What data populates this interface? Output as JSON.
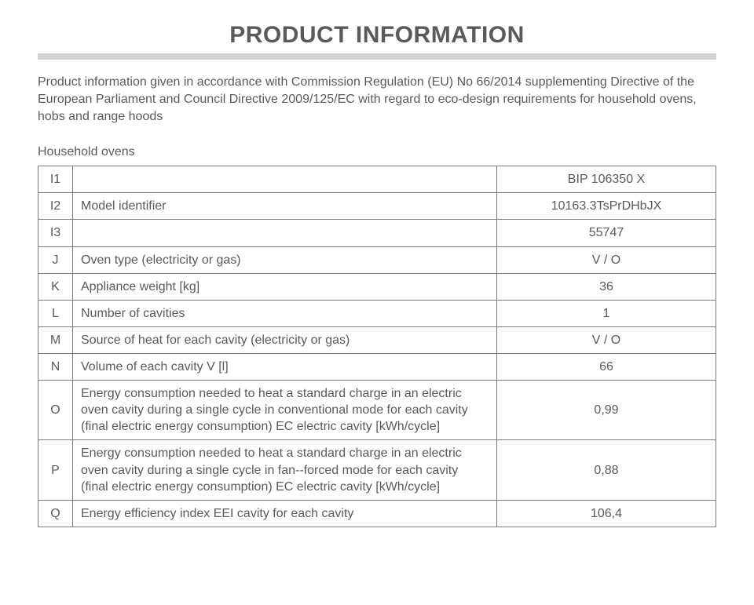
{
  "title": "PRODUCT INFORMATION",
  "intro": "Product information given in accordance with Commission Regulation (EU) No 66/2014 supplementing Directive of the European Parliament and Council Directive 2009/125/EC with regard to eco-design requirements for household ovens, hobs and range hoods",
  "subheading": "Household ovens",
  "table": {
    "columns": {
      "c1_width": 44,
      "c2_width": 540
    },
    "rows": [
      {
        "key": "I1",
        "desc": "",
        "val": "BIP 106350 X"
      },
      {
        "key": "I2",
        "desc": "Model identifier",
        "val": "10163.3TsPrDHbJX"
      },
      {
        "key": "I3",
        "desc": "",
        "val": "55747"
      },
      {
        "key": "J",
        "desc": "Oven type (electricity or gas)",
        "val": "V / O"
      },
      {
        "key": "K",
        "desc": "Appliance weight [kg]",
        "val": "36"
      },
      {
        "key": "L",
        "desc": "Number of cavities",
        "val": "1"
      },
      {
        "key": "M",
        "desc": "Source of heat for each cavity (electricity or gas)",
        "val": "V / O"
      },
      {
        "key": "N",
        "desc": "Volume of each cavity V [l]",
        "val": "66"
      },
      {
        "key": "O",
        "desc": "Energy consumption needed to heat a standard charge in an electric oven cavity during a single cycle in conventional mode for each cavity (final electric energy consumption) EC electric cavity [kWh/cycle]",
        "val": "0,99"
      },
      {
        "key": "P",
        "desc": "Energy consumption needed to heat a standard charge in an electric oven cavity during a single cycle in fan-​-forced mode for each cavity (final electric energy consumption) EC electric cavity [kWh/cycle]",
        "val": "0,88"
      },
      {
        "key": "Q",
        "desc": "Energy efficiency index EEI cavity for each cavity",
        "val": "106,4"
      }
    ]
  },
  "colors": {
    "text": "#5a5a5a",
    "rule": "#cfcfcf",
    "border": "#7a7a7a",
    "background": "#ffffff"
  },
  "fonts": {
    "title_size_pt": 22,
    "body_size_pt": 12
  }
}
